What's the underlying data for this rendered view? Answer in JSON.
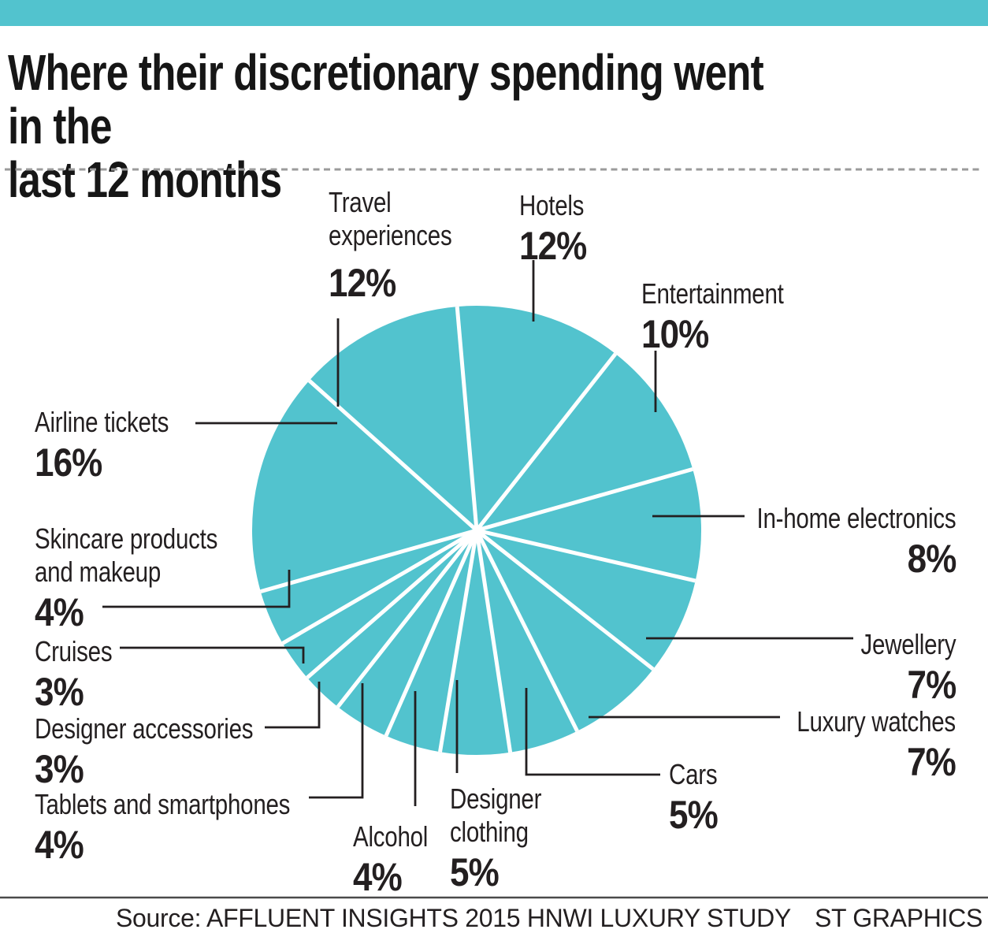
{
  "page": {
    "title": "Where their discretionary spending went in the\nlast 12 months"
  },
  "chart_data": {
    "type": "pie",
    "title": "Where their discretionary spending went in the last 12 months",
    "unit": "%",
    "start_angle_deg": -5,
    "direction": "clockwise",
    "legend_position": "none",
    "slices": [
      {
        "label": "Hotels",
        "value": 12
      },
      {
        "label": "Entertainment",
        "value": 10
      },
      {
        "label": "In-home electronics",
        "value": 8
      },
      {
        "label": "Jewellery",
        "value": 7
      },
      {
        "label": "Luxury watches",
        "value": 7
      },
      {
        "label": "Cars",
        "value": 5
      },
      {
        "label": "Designer clothing",
        "value": 5
      },
      {
        "label": "Alcohol",
        "value": 4
      },
      {
        "label": "Tablets and smartphones",
        "value": 4
      },
      {
        "label": "Designer accessories",
        "value": 3
      },
      {
        "label": "Cruises",
        "value": 3
      },
      {
        "label": "Skincare products and makeup",
        "value": 4
      },
      {
        "label": "Airline tickets",
        "value": 16
      },
      {
        "label": "Travel experiences",
        "value": 12
      }
    ]
  },
  "footer": {
    "source": "Source: AFFLUENT INSIGHTS 2015 HNWI LUXURY STUDY",
    "credit": "ST GRAPHICS"
  },
  "colors": {
    "accent_teal": "#52c3ce",
    "ink": "#231f20",
    "dashed_divider": "#9b9b9b",
    "footer_rule": "#4a4a4a",
    "slice_separator": "#ffffff"
  }
}
